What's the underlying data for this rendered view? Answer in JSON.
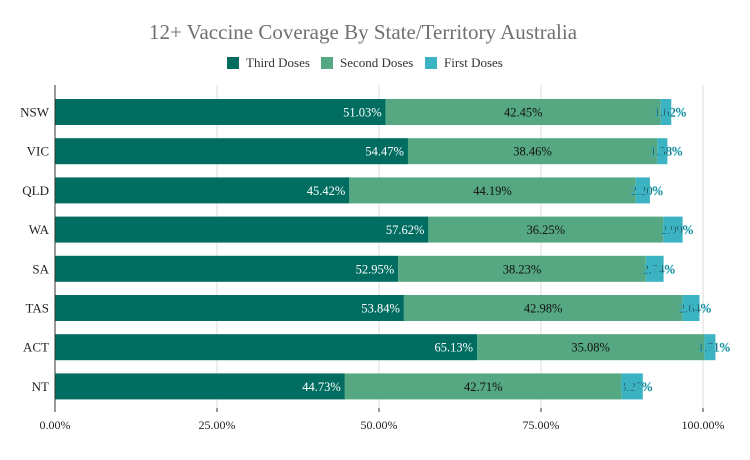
{
  "chart_data": {
    "type": "bar",
    "orientation": "horizontal",
    "stacked": true,
    "title": "12+ Vaccine Coverage By State/Territory Australia",
    "categories": [
      "NSW",
      "VIC",
      "QLD",
      "WA",
      "SA",
      "TAS",
      "ACT",
      "NT"
    ],
    "series": [
      {
        "name": "Third Doses",
        "color": "#016d61",
        "label_color": "#ffffff",
        "values": [
          51.03,
          54.47,
          45.42,
          57.62,
          52.95,
          53.84,
          65.13,
          44.73
        ],
        "labels": [
          "51.03%",
          "54.47%",
          "45.42%",
          "57.62%",
          "52.95%",
          "53.84%",
          "65.13%",
          "44.73%"
        ]
      },
      {
        "name": "Second Doses",
        "color": "#56a883",
        "label_color": "#111111",
        "values": [
          42.45,
          38.46,
          44.19,
          36.25,
          38.23,
          42.98,
          35.08,
          42.71
        ],
        "labels": [
          "42.45%",
          "38.46%",
          "44.19%",
          "36.25%",
          "38.23%",
          "42.98%",
          "35.08%",
          "42.71%"
        ]
      },
      {
        "name": "First Doses",
        "color": "#3bb3c3",
        "label_color": "#111111",
        "values": [
          1.62,
          1.58,
          2.2,
          2.99,
          2.74,
          2.64,
          1.71,
          3.27
        ],
        "labels": [
          "1.62%",
          "1.58%",
          "2.20%",
          "2.99%",
          "2.74%",
          "2.64%",
          "1.71%",
          "3.27%"
        ]
      }
    ],
    "xlim": [
      0,
      100
    ],
    "xticks": [
      0,
      25,
      50,
      75,
      100
    ],
    "xtick_labels": [
      "0.00%",
      "25.00%",
      "50.00%",
      "75.00%",
      "100.00%"
    ],
    "xlabel": "",
    "ylabel": "",
    "grid": true,
    "legend_position": "top-center"
  }
}
